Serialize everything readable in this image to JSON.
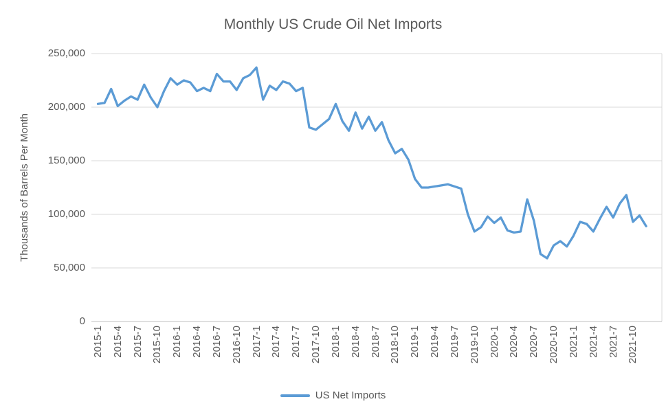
{
  "colors": {
    "line": "#5B9BD5",
    "grid": "#D9D9D9",
    "axis": "#BFBFBF",
    "text": "#595959"
  },
  "chart_data": {
    "type": "line",
    "title": "Monthly US Crude Oil Net Imports",
    "xlabel": "",
    "ylabel": "Thousands of Barrels Per Month",
    "ylim": [
      0,
      250000
    ],
    "grid": true,
    "legend_position": "bottom",
    "y_tick_values": [
      0,
      50000,
      100000,
      150000,
      200000,
      250000
    ],
    "y_tick_labels": [
      "0",
      "50,000",
      "100,000",
      "150,000",
      "200,000",
      "250,000"
    ],
    "x_tick_labels": [
      "2015-1",
      "2015-4",
      "2015-7",
      "2015-10",
      "2016-1",
      "2016-4",
      "2016-7",
      "2016-10",
      "2017-1",
      "2017-4",
      "2017-7",
      "2017-10",
      "2018-1",
      "2018-4",
      "2018-7",
      "2018-10",
      "2019-1",
      "2019-4",
      "2019-7",
      "2019-10",
      "2020-1",
      "2020-4",
      "2020-7",
      "2020-10",
      "2021-1",
      "2021-4",
      "2021-7",
      "2021-10"
    ],
    "x_tick_interval_months": 3,
    "x_months": [
      "2015-1",
      "2015-2",
      "2015-3",
      "2015-4",
      "2015-5",
      "2015-6",
      "2015-7",
      "2015-8",
      "2015-9",
      "2015-10",
      "2015-11",
      "2015-12",
      "2016-1",
      "2016-2",
      "2016-3",
      "2016-4",
      "2016-5",
      "2016-6",
      "2016-7",
      "2016-8",
      "2016-9",
      "2016-10",
      "2016-11",
      "2016-12",
      "2017-1",
      "2017-2",
      "2017-3",
      "2017-4",
      "2017-5",
      "2017-6",
      "2017-7",
      "2017-8",
      "2017-9",
      "2017-10",
      "2017-11",
      "2017-12",
      "2018-1",
      "2018-2",
      "2018-3",
      "2018-4",
      "2018-5",
      "2018-6",
      "2018-7",
      "2018-8",
      "2018-9",
      "2018-10",
      "2018-11",
      "2018-12",
      "2019-1",
      "2019-2",
      "2019-3",
      "2019-4",
      "2019-5",
      "2019-6",
      "2019-7",
      "2019-8",
      "2019-9",
      "2019-10",
      "2019-11",
      "2019-12",
      "2020-1",
      "2020-2",
      "2020-3",
      "2020-4",
      "2020-5",
      "2020-6",
      "2020-7",
      "2020-8",
      "2020-9",
      "2020-10",
      "2020-11",
      "2020-12",
      "2021-1",
      "2021-2",
      "2021-3",
      "2021-4",
      "2021-5",
      "2021-6",
      "2021-7",
      "2021-8",
      "2021-9",
      "2021-10",
      "2021-11",
      "2021-12"
    ],
    "series": [
      {
        "name": "US Net Imports",
        "color": "#5B9BD5",
        "values": [
          203000,
          204000,
          217000,
          201000,
          206000,
          210000,
          207000,
          221000,
          209000,
          200000,
          215000,
          227000,
          221000,
          225000,
          223000,
          215000,
          218000,
          215000,
          231000,
          224000,
          224000,
          216000,
          227000,
          230000,
          237000,
          207000,
          220000,
          216000,
          224000,
          222000,
          215000,
          218000,
          181000,
          179000,
          184000,
          189000,
          203000,
          187000,
          178000,
          195000,
          180000,
          191000,
          178000,
          186000,
          169000,
          157000,
          161000,
          151000,
          133000,
          125000,
          125000,
          126000,
          127000,
          128000,
          126000,
          124000,
          100000,
          84000,
          88000,
          98000,
          92000,
          97000,
          85000,
          83000,
          84000,
          114000,
          94000,
          63000,
          59000,
          71000,
          75000,
          70000,
          80000,
          93000,
          91000,
          84000,
          96000,
          107000,
          97000,
          110000,
          118000,
          93000,
          99000,
          89000
        ]
      }
    ]
  }
}
